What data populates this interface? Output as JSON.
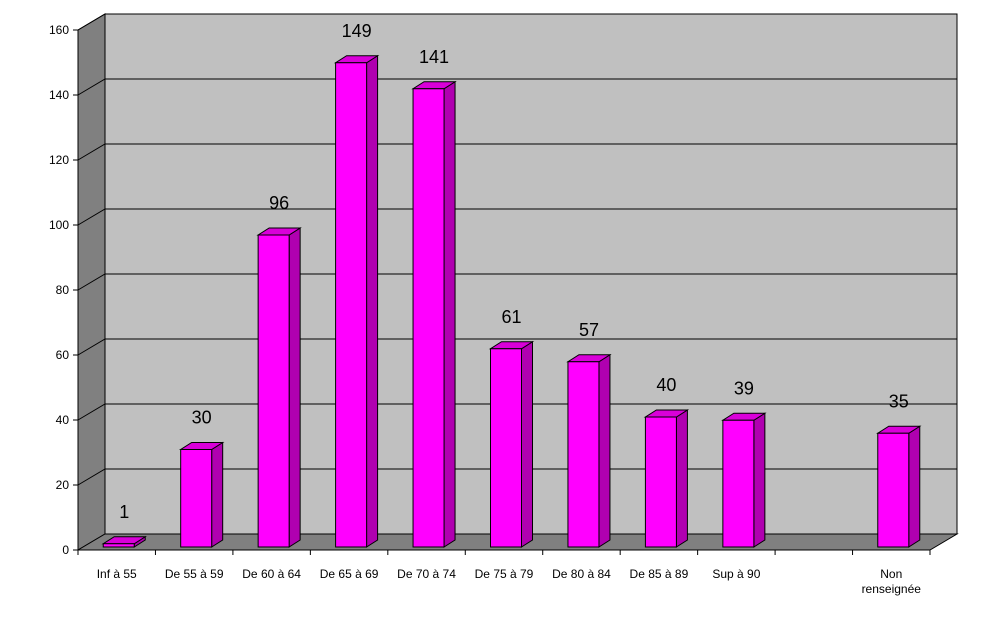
{
  "chart_data": {
    "type": "bar",
    "categories": [
      "Inf à 55",
      "De 55 à 59",
      "De 60 à 64",
      "De 65 à 69",
      "De 70 à 74",
      "De 75 à 79",
      "De 80 à 84",
      "De 85 à 89",
      "Sup à 90",
      "",
      "Non renseignée"
    ],
    "category_lines": [
      [
        "Inf à 55"
      ],
      [
        "De 55 à 59"
      ],
      [
        "De 60 à 64"
      ],
      [
        "De 65 à 69"
      ],
      [
        "De 70 à 74"
      ],
      [
        "De 75 à 79"
      ],
      [
        "De 80 à 84"
      ],
      [
        "De 85 à 89"
      ],
      [
        "Sup à 90"
      ],
      [],
      [
        "Non",
        "renseignée"
      ]
    ],
    "values": [
      1,
      30,
      96,
      149,
      141,
      61,
      57,
      40,
      39,
      null,
      35
    ],
    "data_labels": [
      "1",
      "30",
      "96",
      "149",
      "141",
      "61",
      "57",
      "40",
      "39",
      "",
      "35"
    ],
    "y_ticks": [
      0,
      20,
      40,
      60,
      80,
      100,
      120,
      140,
      160
    ],
    "ylim": [
      0,
      160
    ],
    "title": "",
    "xlabel": "",
    "ylabel": "",
    "grid": true,
    "three_d": true,
    "legend": "none",
    "colors": {
      "bar_front": "#ff00ff",
      "bar_side": "#b000b0",
      "bar_top": "#d900d9",
      "wall": "#c0c0c0",
      "wall_side": "#808080",
      "floor": "#808080",
      "gridline": "#000000"
    }
  }
}
